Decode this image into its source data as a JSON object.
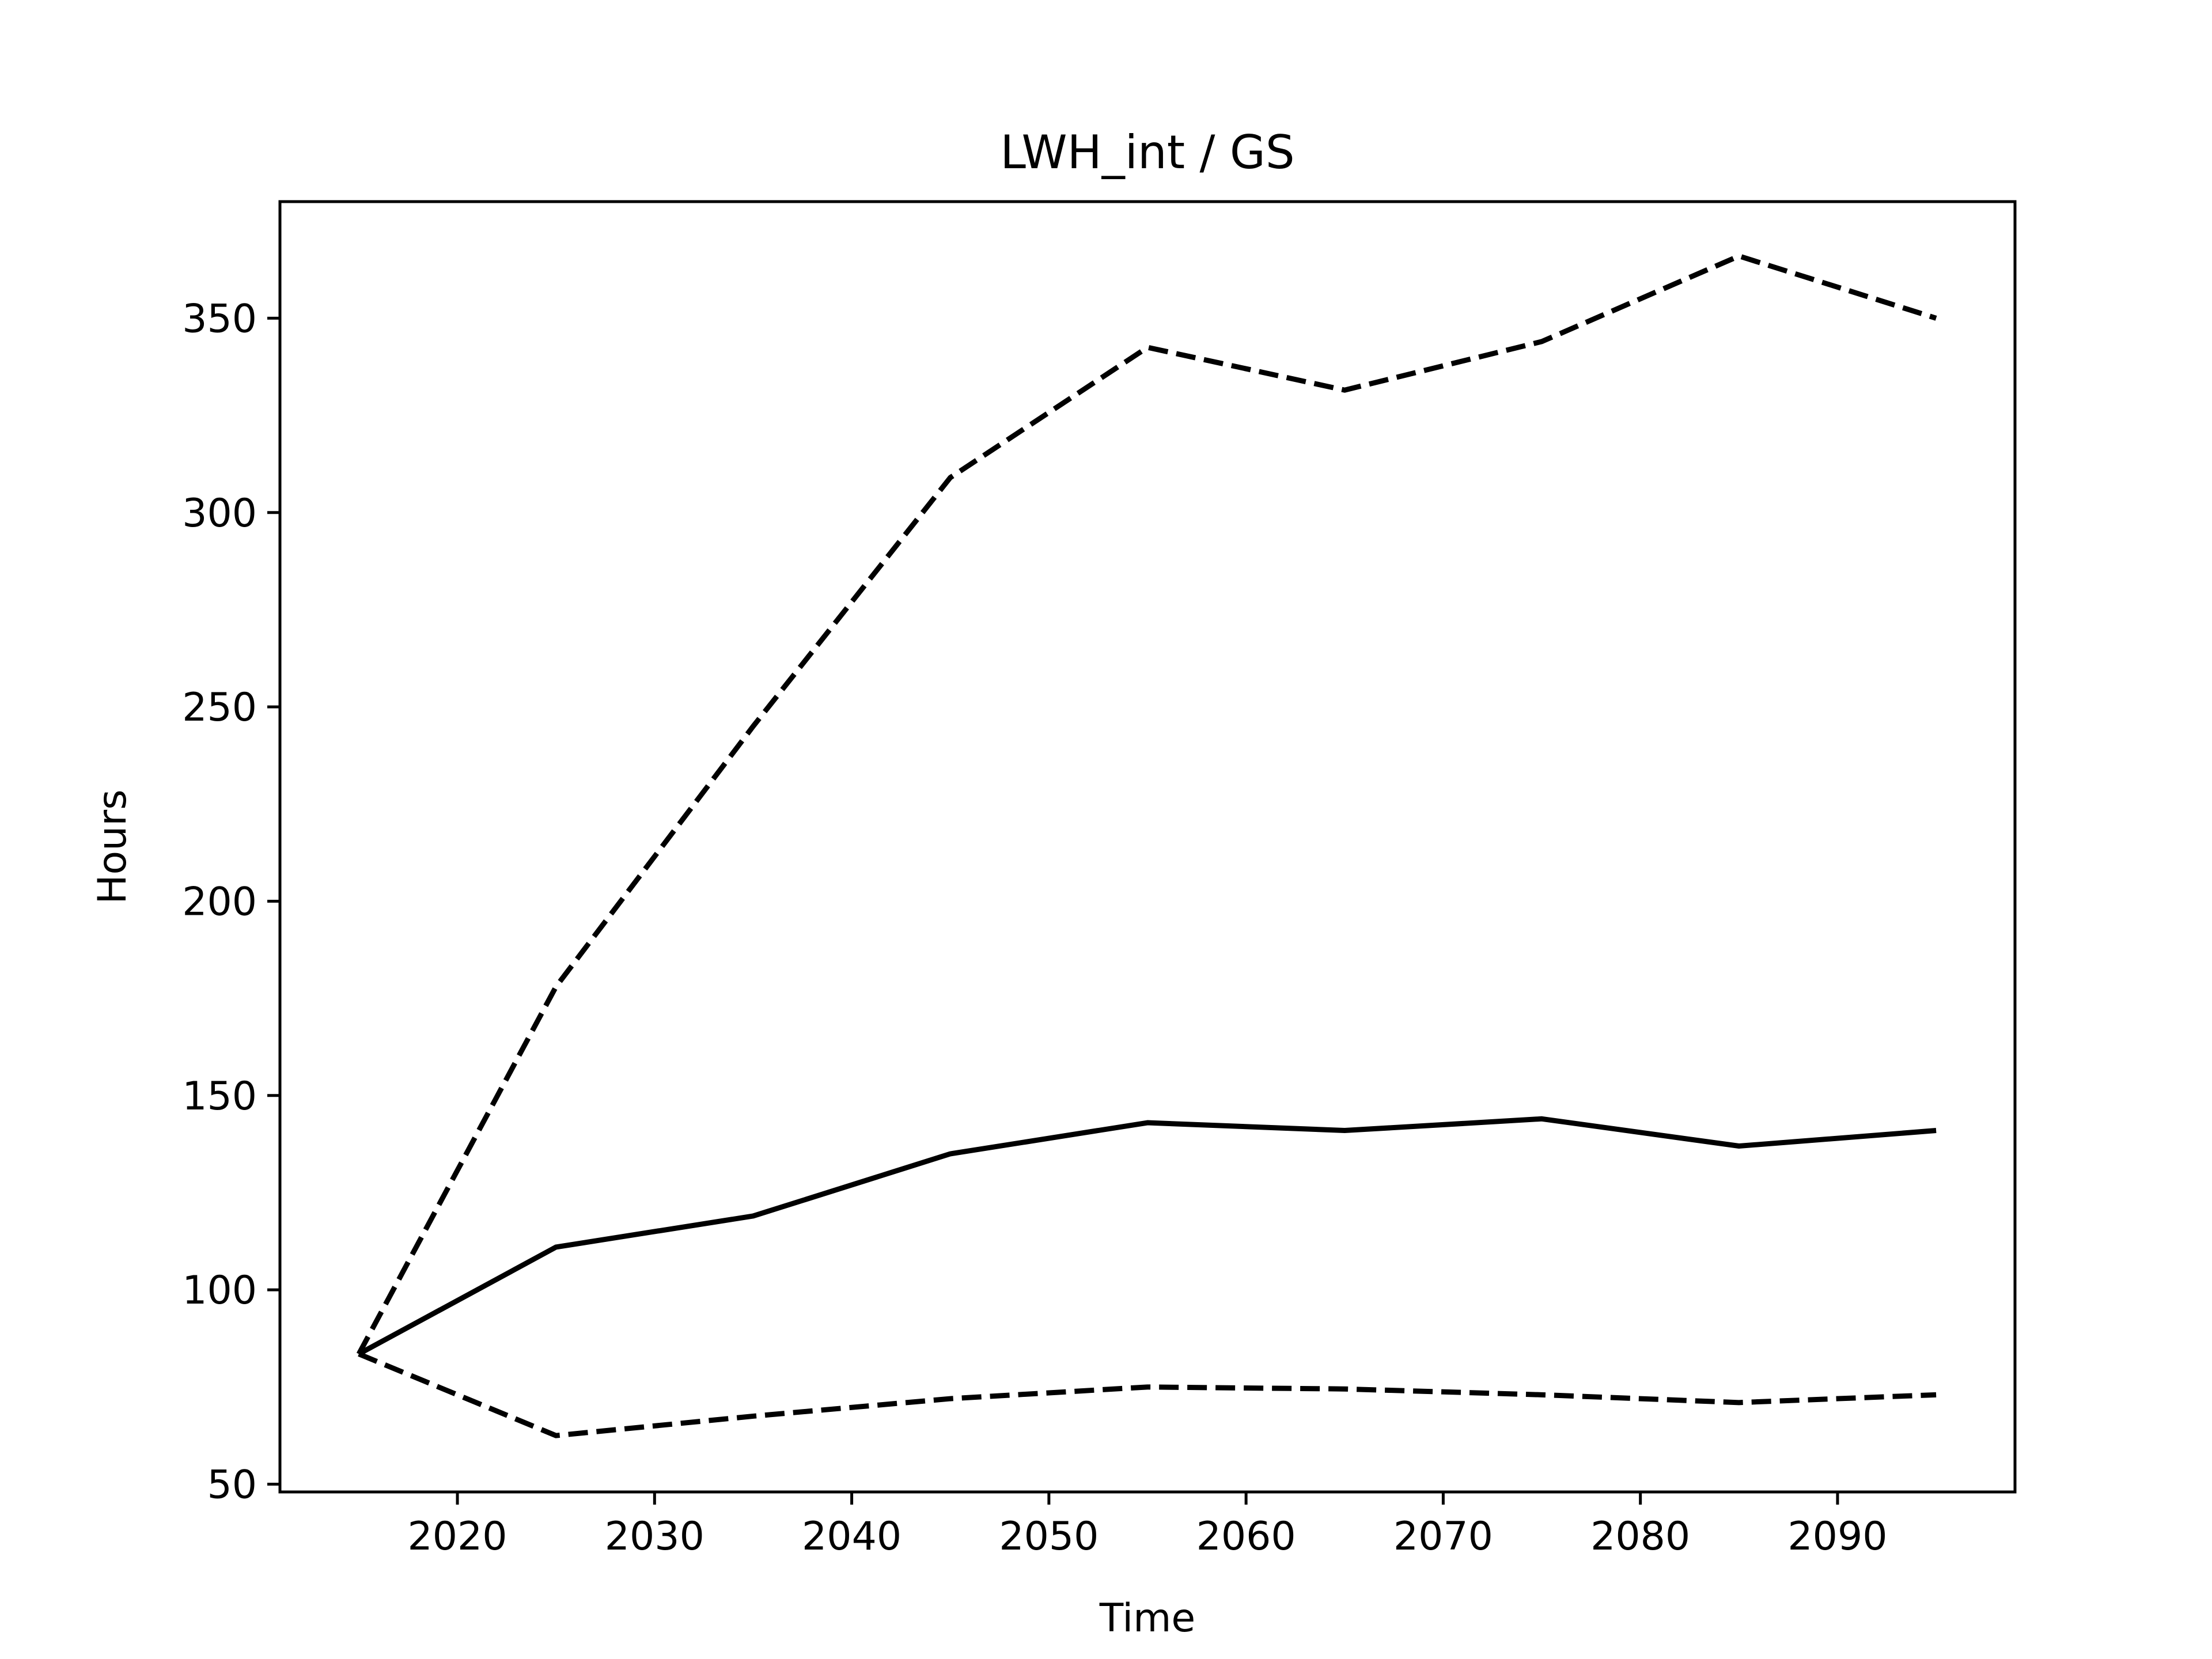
{
  "chart_data": {
    "type": "line",
    "title": "LWH_int / GS",
    "xlabel": "Time",
    "ylabel": "Hours",
    "xlim": [
      2011,
      2099
    ],
    "ylim": [
      48,
      380
    ],
    "x_ticks": [
      2020,
      2030,
      2040,
      2050,
      2060,
      2070,
      2080,
      2090
    ],
    "y_ticks": [
      50,
      100,
      150,
      200,
      250,
      300,
      350
    ],
    "x_tick_labels": [
      "2020",
      "2030",
      "2040",
      "2050",
      "2060",
      "2070",
      "2080",
      "2090"
    ],
    "y_tick_labels": [
      "50",
      "100",
      "150",
      "200",
      "250",
      "300",
      "350"
    ],
    "grid": false,
    "legend": "none",
    "x": [
      2015,
      2025,
      2035,
      2045,
      2055,
      2065,
      2075,
      2085,
      2095
    ],
    "series": [
      {
        "style": "dashed",
        "color": "#000000",
        "values": [
          83.5,
          178,
          245,
          309,
          342.5,
          331.5,
          344,
          366,
          350
        ]
      },
      {
        "style": "solid",
        "color": "#000000",
        "values": [
          83.5,
          111,
          119,
          135,
          143,
          141,
          144,
          137,
          141
        ]
      },
      {
        "style": "dashed",
        "color": "#000000",
        "values": [
          83.5,
          62.5,
          67.5,
          72,
          75,
          74.5,
          73,
          71,
          73
        ]
      }
    ]
  }
}
